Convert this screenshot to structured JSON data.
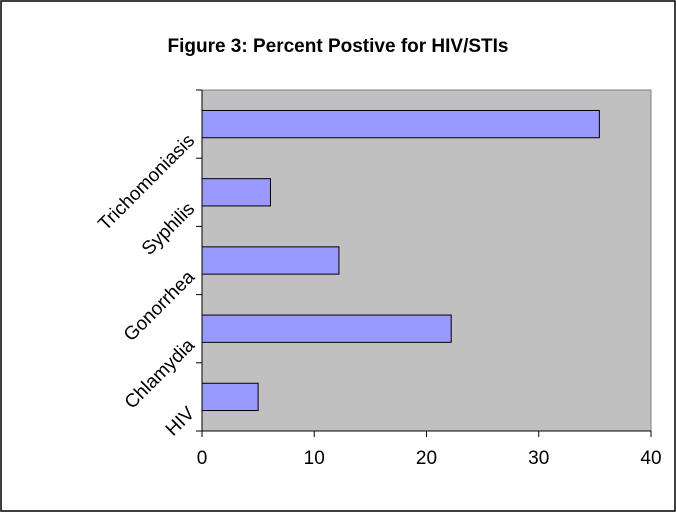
{
  "chart_data": {
    "type": "bar",
    "orientation": "horizontal",
    "title": "Figure 3: Percent Postive for HIV/STIs",
    "categories": [
      "HIV",
      "Chlamydia",
      "Gonorrhea",
      "Syphilis",
      "Trichomoniasis"
    ],
    "values": [
      5,
      22.2,
      12.2,
      6.1,
      35.4
    ],
    "color": "#9999ff",
    "xlim": [
      0,
      40
    ],
    "xticks": [
      0,
      10,
      20,
      30,
      40
    ],
    "grid": false
  }
}
